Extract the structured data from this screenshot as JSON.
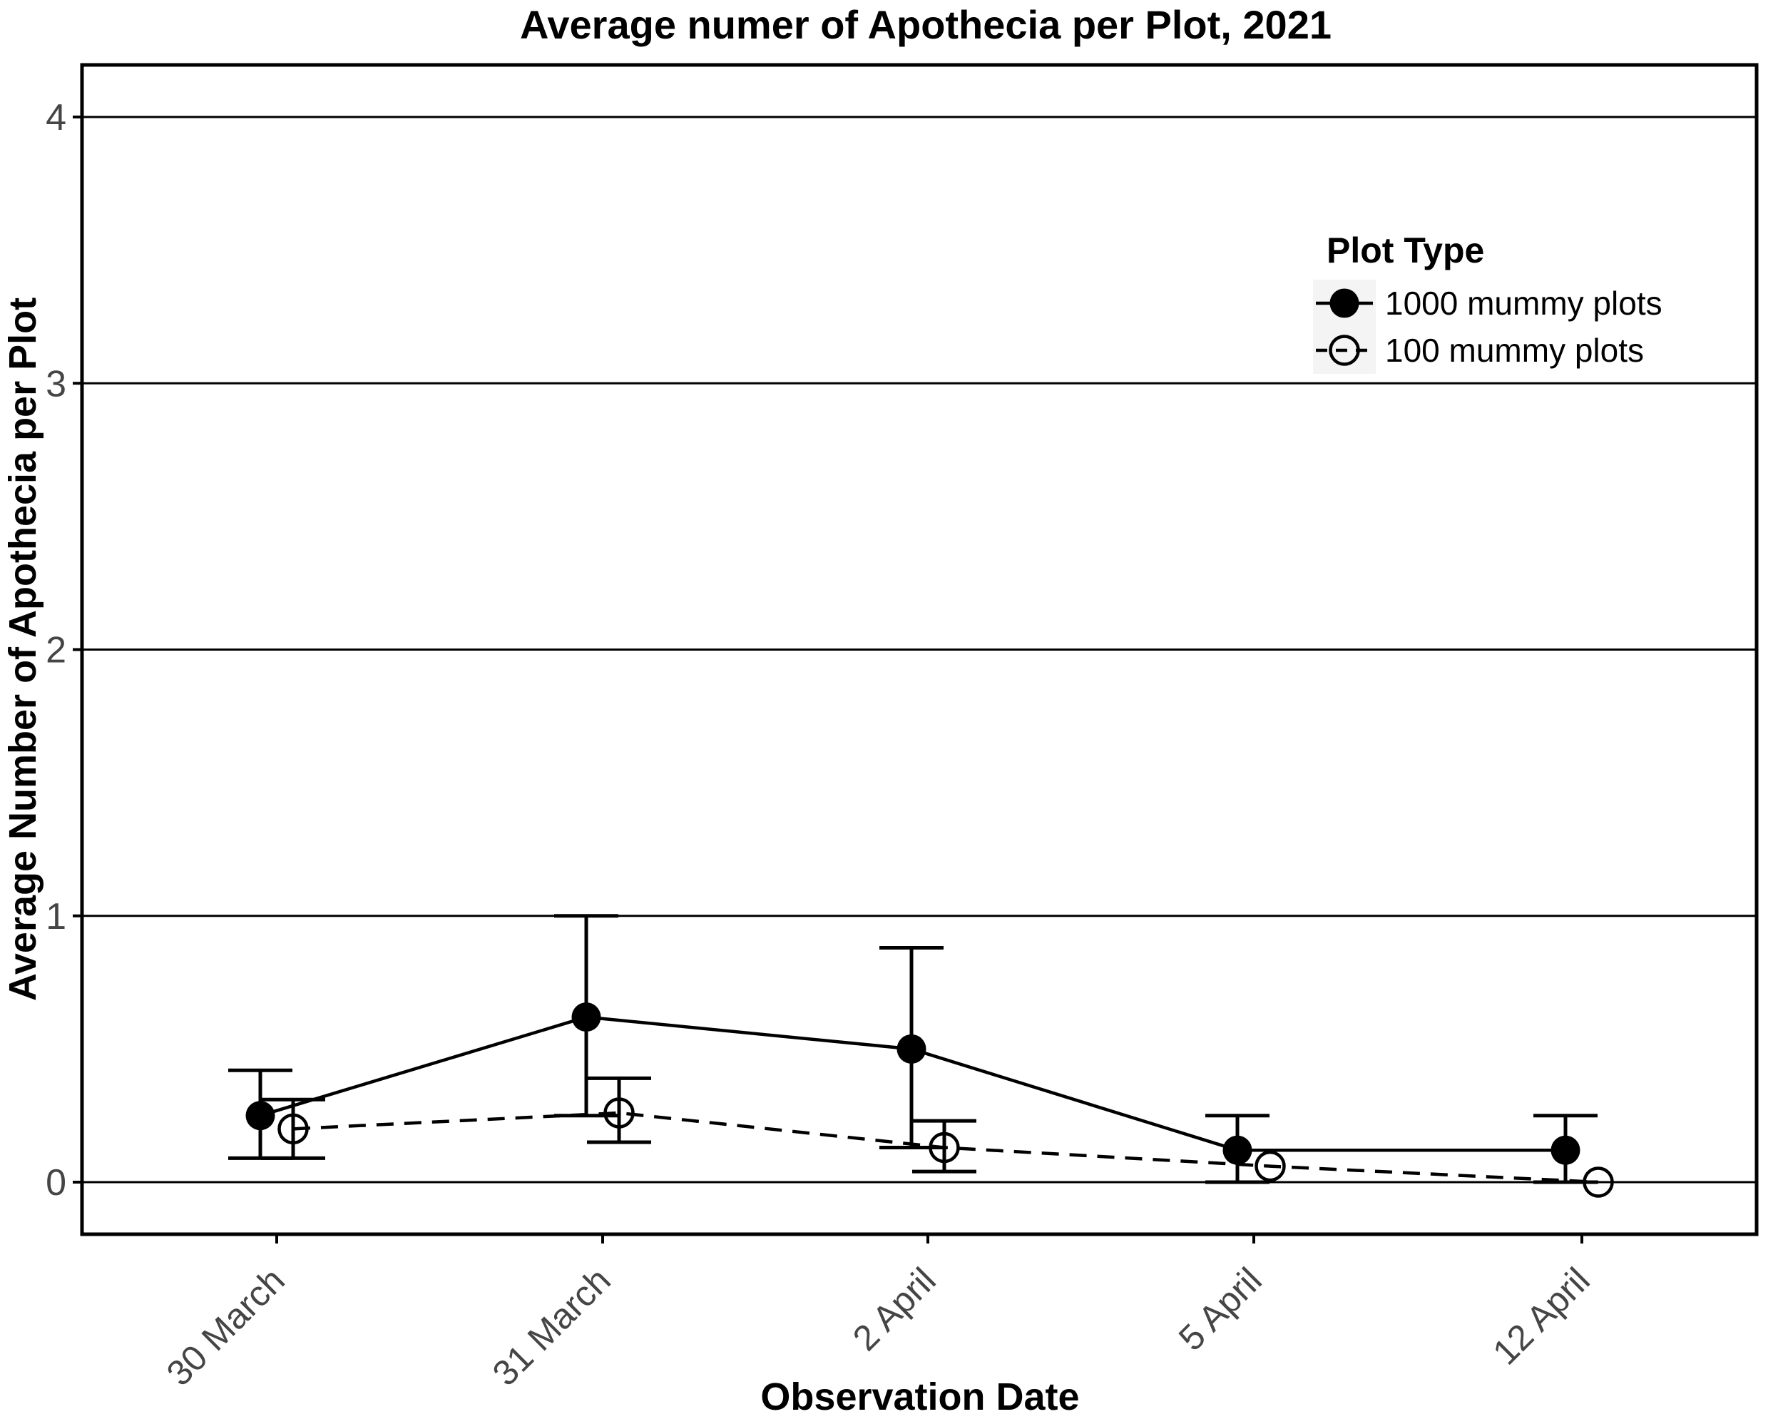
{
  "title": "Average numer of Apothecia per Plot, 2021",
  "axes": {
    "x_title": "Observation Date",
    "y_title": "Average Number of Apothecia per Plot"
  },
  "legend": {
    "title": "Plot Type",
    "position": "inside-top-right",
    "items": [
      {
        "label": "1000 mummy plots",
        "marker": "filled-circle",
        "line": "solid"
      },
      {
        "label": "100 mummy plots",
        "marker": "open-circle",
        "line": "dashed"
      }
    ]
  },
  "colors": {
    "foreground": "#000000",
    "background": "#ffffff",
    "tick_label": "#454545",
    "legend_key_background": "#f4f4f4"
  },
  "chart_data": {
    "type": "line",
    "title": "Average numer of Apothecia per Plot, 2021",
    "xlabel": "Observation Date",
    "ylabel": "Average Number of Apothecia per Plot",
    "categories": [
      "30 March",
      "31 March",
      "2 April",
      "5 April",
      "12 April"
    ],
    "x_tick_rotation_deg": 45,
    "y_ticks": [
      0,
      1,
      2,
      3,
      4
    ],
    "ylim": [
      -0.2,
      4.2
    ],
    "grid": "horizontal-major-only",
    "legend_position": "inside-top-right",
    "series": [
      {
        "name": "1000 mummy plots",
        "marker": "filled-circle",
        "line_style": "solid",
        "values": [
          0.25,
          0.62,
          0.5,
          0.12,
          0.12
        ],
        "error_low": [
          0.09,
          0.25,
          0.13,
          0.0,
          0.0
        ],
        "error_high": [
          0.42,
          1.0,
          0.88,
          0.25,
          0.25
        ]
      },
      {
        "name": "100 mummy plots",
        "marker": "open-circle",
        "line_style": "dashed",
        "values": [
          0.2,
          0.26,
          0.13,
          0.06,
          0.0
        ],
        "error_low": [
          0.09,
          0.15,
          0.04,
          null,
          null
        ],
        "error_high": [
          0.31,
          0.39,
          0.23,
          null,
          null
        ]
      }
    ]
  }
}
